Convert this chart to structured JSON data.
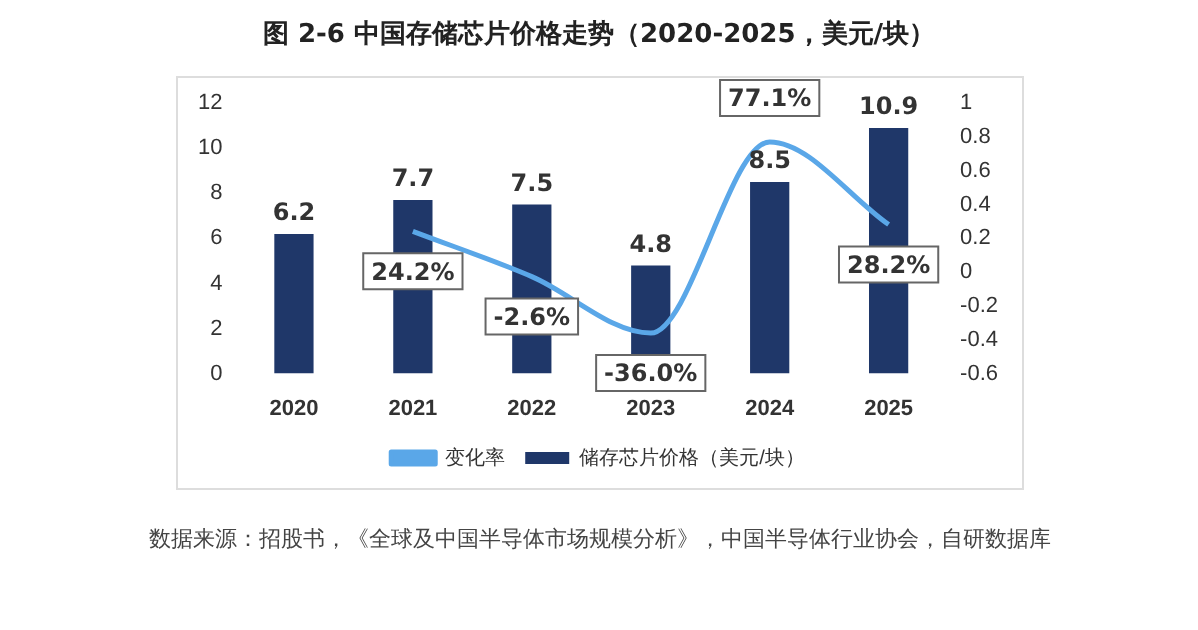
{
  "chart_data": {
    "type": "bar",
    "title": "图 2-6 中国存储芯片价格走势（2020-2025，美元/块）",
    "categories": [
      "2020",
      "2021",
      "2022",
      "2023",
      "2024",
      "2025"
    ],
    "series": [
      {
        "name": "储存芯片价格（美元/块）",
        "color": "#1f3769",
        "values": [
          6.2,
          7.7,
          7.5,
          4.8,
          8.5,
          10.9
        ]
      },
      {
        "name": "变化率",
        "type": "line",
        "axis": "y2",
        "color": "#5aa7e8",
        "values": [
          null,
          0.242,
          -0.026,
          -0.36,
          0.771,
          0.282
        ],
        "value_labels": [
          null,
          "24.2%",
          "-2.6%",
          "-36.0%",
          "77.1%",
          "28.2%"
        ]
      }
    ],
    "data_labels": true,
    "ylim": [
      0,
      12
    ],
    "yticks": [
      0,
      2,
      4,
      6,
      8,
      10,
      12
    ],
    "y2lim": [
      -0.6,
      1
    ],
    "y2ticks": [
      -0.6,
      -0.4,
      -0.2,
      0,
      0.2,
      0.4,
      0.6,
      0.8,
      1
    ],
    "grid": false,
    "legend": "bottom",
    "marker": "none",
    "annotations": [
      "数据来源：招股书，《全球及中国半导体市场规模分析》，中国半导体行业协会，自研数据库"
    ]
  }
}
